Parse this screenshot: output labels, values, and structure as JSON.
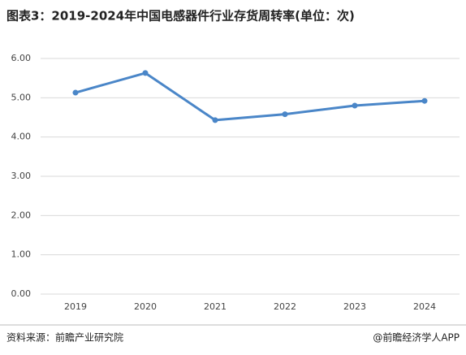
{
  "chart_data": {
    "type": "line",
    "title": "图表3：2019-2024年中国电感器件行业存货周转率(单位：次)",
    "categories": [
      "2019",
      "2020",
      "2021",
      "2022",
      "2023",
      "2024"
    ],
    "series": [
      {
        "name": "存货周转率",
        "color": "#4a86c8",
        "values": [
          5.13,
          5.63,
          4.43,
          4.58,
          4.8,
          4.92
        ]
      }
    ],
    "ylim": [
      0,
      6
    ],
    "yticks": [
      {
        "value": 0,
        "label": "0.00"
      },
      {
        "value": 1,
        "label": "1.00"
      },
      {
        "value": 2,
        "label": "2.00"
      },
      {
        "value": 3,
        "label": "3.00"
      },
      {
        "value": 4,
        "label": "4.00"
      },
      {
        "value": 5,
        "label": "5.00"
      },
      {
        "value": 6,
        "label": "6.00"
      }
    ],
    "grid": true,
    "source": "资料来源：前瞻产业研究院",
    "credit": "@前瞻经济学人APP"
  }
}
